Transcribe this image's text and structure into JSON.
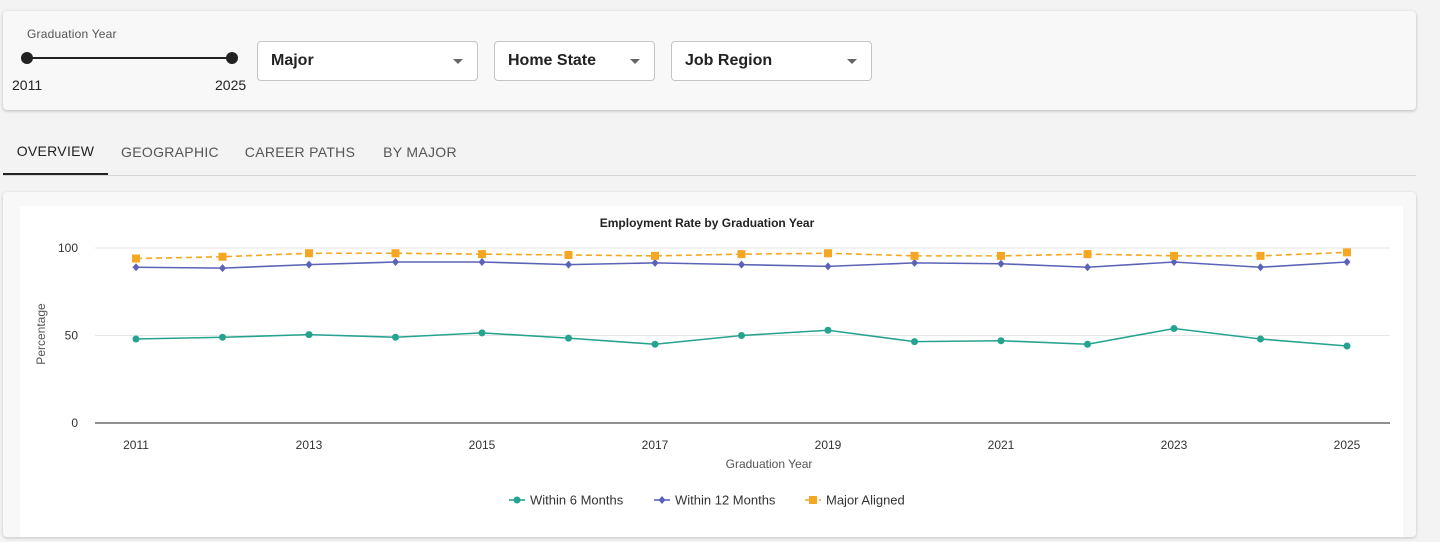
{
  "filters": {
    "year_slider": {
      "label": "Graduation Year",
      "min_label": "2011",
      "max_label": "2025",
      "min": 2011,
      "max": 2025
    },
    "major": {
      "label": "Major"
    },
    "home_state": {
      "label": "Home State"
    },
    "job_region": {
      "label": "Job Region"
    }
  },
  "tabs": [
    {
      "label": "OVERVIEW",
      "active": true
    },
    {
      "label": "GEOGRAPHIC",
      "active": false
    },
    {
      "label": "CAREER PATHS",
      "active": false
    },
    {
      "label": "BY MAJOR",
      "active": false
    }
  ],
  "chart_data": {
    "type": "line",
    "title": "Employment Rate by Graduation Year",
    "xlabel": "Graduation Year",
    "ylabel": "Percentage",
    "x": [
      2011,
      2012,
      2013,
      2014,
      2015,
      2016,
      2017,
      2018,
      2019,
      2020,
      2021,
      2022,
      2023,
      2024,
      2025
    ],
    "x_ticks": [
      "2011",
      "2013",
      "2015",
      "2017",
      "2019",
      "2021",
      "2023",
      "2025"
    ],
    "y_ticks": [
      "0",
      "50",
      "100"
    ],
    "ylim": [
      0,
      100
    ],
    "grid": true,
    "legend_position": "bottom",
    "series": [
      {
        "name": "Within 6 Months",
        "color": "#26a38f",
        "marker": "circle",
        "dashed": false,
        "values": [
          48,
          49,
          50.5,
          49,
          51.5,
          48.5,
          45,
          50,
          53,
          46.5,
          47,
          45,
          54,
          48,
          44
        ]
      },
      {
        "name": "Within 12 Months",
        "color": "#5b63b7",
        "marker": "diamond",
        "dashed": false,
        "values": [
          89,
          88.5,
          90.5,
          92,
          92,
          90.5,
          91.5,
          90.5,
          89.5,
          91.5,
          91,
          89,
          92,
          89,
          92
        ]
      },
      {
        "name": "Major Aligned",
        "color": "#f5a623",
        "marker": "square",
        "dashed": true,
        "values": [
          94,
          95,
          97,
          97,
          96.5,
          96,
          95.5,
          96.5,
          97,
          95.5,
          95.5,
          96.5,
          95.5,
          95.5,
          97.5
        ]
      }
    ]
  }
}
